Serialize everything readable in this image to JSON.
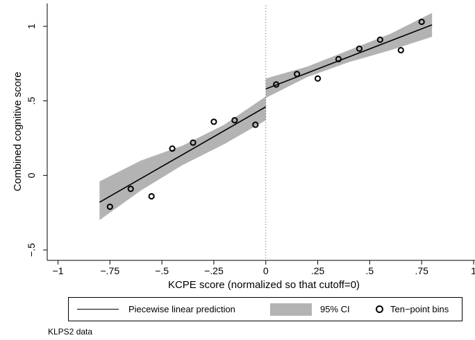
{
  "chart_data": {
    "type": "scatter",
    "title": "",
    "xlabel": "KCPE score (normalized so that cutoff=0)",
    "ylabel": "Combined cognitive score",
    "xlim": [
      -1,
      1
    ],
    "ylim": [
      -0.5,
      1.15
    ],
    "xticks": [
      -1,
      -0.75,
      -0.5,
      -0.25,
      0,
      0.25,
      0.5,
      0.75,
      1
    ],
    "xtick_labels": [
      "−1",
      "−.75",
      "−.5",
      "−.25",
      "0",
      ".25",
      ".5",
      ".75",
      "1"
    ],
    "yticks": [
      -0.5,
      0,
      0.5,
      1
    ],
    "ytick_labels": [
      "−.5",
      "0",
      ".5",
      "1"
    ],
    "cutoff_line_x": 0,
    "grid": false,
    "legend_position": "bottom",
    "series": [
      {
        "name": "Ten−point bins",
        "kind": "scatter",
        "x": [
          -0.75,
          -0.65,
          -0.55,
          -0.45,
          -0.35,
          -0.25,
          -0.15,
          -0.05,
          0.05,
          0.15,
          0.25,
          0.35,
          0.45,
          0.55,
          0.65,
          0.75
        ],
        "y": [
          -0.21,
          -0.09,
          -0.14,
          0.18,
          0.22,
          0.36,
          0.37,
          0.34,
          0.61,
          0.68,
          0.65,
          0.78,
          0.85,
          0.91,
          0.84,
          1.03
        ]
      },
      {
        "name": "Piecewise linear prediction",
        "kind": "line",
        "segments": [
          {
            "x": [
              -0.8,
              0
            ],
            "y": [
              -0.18,
              0.46
            ]
          },
          {
            "x": [
              0,
              0.8
            ],
            "y": [
              0.58,
              1.01
            ]
          }
        ]
      },
      {
        "name": "95% CI",
        "kind": "band",
        "segments": [
          {
            "x": [
              -0.8,
              -0.6,
              -0.4,
              -0.2,
              0
            ],
            "lower": [
              -0.3,
              -0.1,
              0.07,
              0.21,
              0.37
            ],
            "upper": [
              -0.04,
              0.1,
              0.2,
              0.34,
              0.53
            ]
          },
          {
            "x": [
              0,
              0.2,
              0.4,
              0.6,
              0.8
            ],
            "lower": [
              0.52,
              0.66,
              0.76,
              0.84,
              0.93
            ],
            "upper": [
              0.65,
              0.73,
              0.84,
              0.95,
              1.09
            ]
          }
        ]
      }
    ]
  },
  "legend": {
    "line_label": "Piecewise linear prediction",
    "ci_label": "95% CI",
    "bins_label": "Ten−point bins"
  },
  "note": "KLPS2 data"
}
